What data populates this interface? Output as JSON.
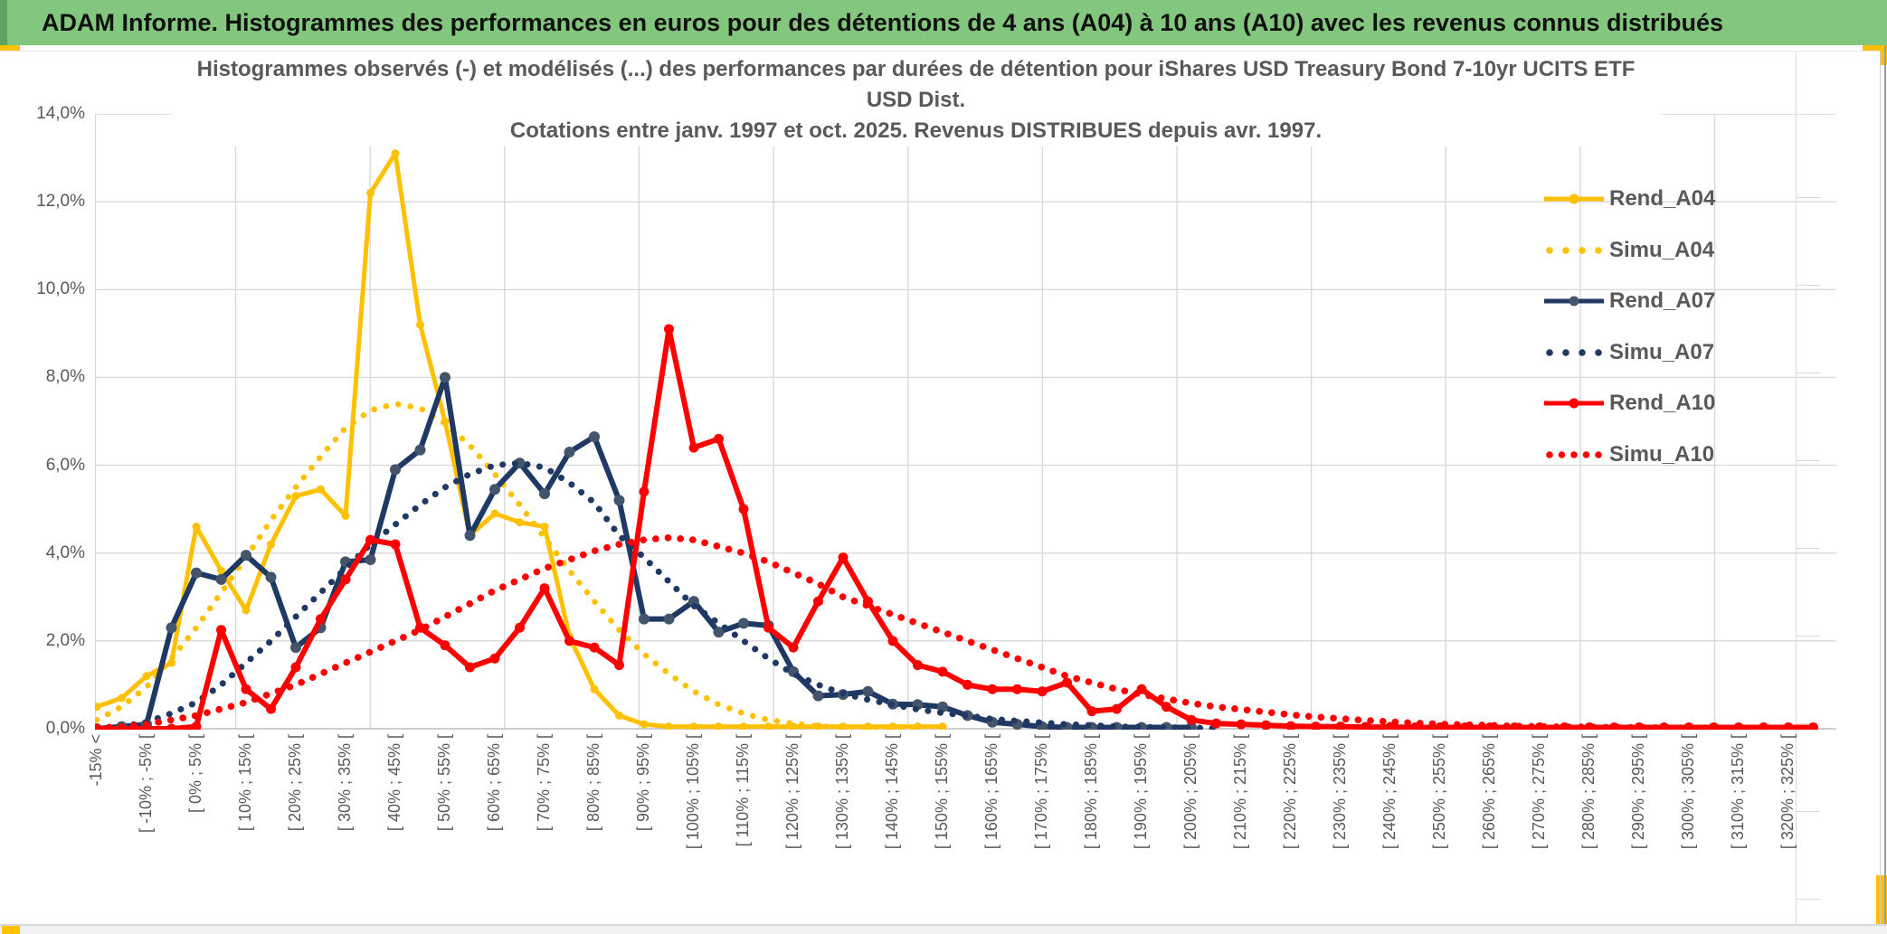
{
  "window": {
    "title": "ADAM Informe. Histogrammes des performances en euros pour des détentions de 4 ans (A04) à 10 ans (A10) avec les revenus connus distribués",
    "colors": {
      "header_green": "#83C67D",
      "header_green_edge": "#5FA25F",
      "accent_gold": "#FFC000",
      "text_gray": "#595959",
      "gridline": "#D9D9D9",
      "axis_line": "#BFBFBF"
    }
  },
  "chart": {
    "title_line1": "Histogrammes observés (-) et modélisés (...) des performances par durées de détention pour iShares USD Treasury Bond 7-10yr UCITS ETF USD Dist.",
    "title_line2": "Cotations entre janv. 1997 et oct. 2025. Revenus DISTRIBUES depuis avr. 1997."
  },
  "chart_data": {
    "type": "line",
    "title": "Histogrammes observés (-) et modélisés (...) des performances par durées de détention pour iShares USD Treasury Bond 7-10yr UCITS ETF USD Dist. Cotations entre janv. 1997 et oct. 2025. Revenus DISTRIBUES depuis avr. 1997.",
    "xlabel": "",
    "ylabel": "",
    "ylim": [
      0,
      14
    ],
    "grid": true,
    "legend_position": "right-inside",
    "y_ticks": [
      "14,0%",
      "12,0%",
      "10,0%",
      "8,0%",
      "6,0%",
      "4,0%",
      "2,0%",
      "0,0%"
    ],
    "n_bins": 70,
    "bin_width_pct": 5,
    "bins_per_label": 2,
    "x_tick_labels": [
      "-15% <",
      "[ -10% ; -5% [",
      "[ 0% ; 5% [",
      "[ 10% ; 15% [",
      "[ 20% ; 25% [",
      "[ 30% ; 35% [",
      "[ 40% ; 45% [",
      "[ 50% ; 55% [",
      "[ 60% ; 65% [",
      "[ 70% ; 75% [",
      "[ 80% ; 85% [",
      "[ 90% ; 95% [",
      "[ 100% ; 105% [",
      "[ 110% ; 115% [",
      "[ 120% ; 125% [",
      "[ 130% ; 135% [",
      "[ 140% ; 145% [",
      "[ 150% ; 155% [",
      "[ 160% ; 165% [",
      "[ 170% ; 175% [",
      "[ 180% ; 185% [",
      "[ 190% ; 195% [",
      "[ 200% ; 205% [",
      "[ 210% ; 215% [",
      "[ 220% ; 225% [",
      "[ 230% ; 235% [",
      "[ 240% ; 245% [",
      "[ 250% ; 255% [",
      "[ 260% ; 265% [",
      "[ 270% ; 275% [",
      "[ 280% ; 285% [",
      "[ 290% ; 295% [",
      "[ 300% ; 305% [",
      "[ 310% ; 315% [",
      "[ 320% ; 325% ["
    ],
    "series": [
      {
        "name": "Rend_A04",
        "style": "solid",
        "color": "#FFC000",
        "marker_color": "#FFC000",
        "values": [
          0.5,
          0.7,
          1.2,
          1.5,
          4.6,
          3.6,
          2.7,
          4.2,
          5.3,
          5.45,
          4.85,
          12.2,
          13.1,
          9.2,
          7.0,
          4.4,
          4.9,
          4.7,
          4.6,
          2.1,
          0.9,
          0.3,
          0.1,
          0.05,
          0.05,
          0.05,
          0.05,
          0.05,
          0.05,
          0.05,
          0.05,
          0.05,
          0.05,
          0.05,
          0.05,
          null,
          null,
          null,
          null,
          null,
          null,
          null,
          null,
          null,
          null,
          null,
          null,
          null,
          null,
          null,
          null,
          null,
          null,
          null,
          null,
          null,
          null,
          null,
          null,
          null,
          null,
          null,
          null,
          null,
          null,
          null,
          null,
          null,
          null,
          null
        ]
      },
      {
        "name": "Simu_A04",
        "style": "dotted",
        "color": "#FFC000",
        "values": [
          0.2,
          0.5,
          0.95,
          1.6,
          2.3,
          3.1,
          3.9,
          4.75,
          5.5,
          6.2,
          6.85,
          7.25,
          7.4,
          7.3,
          6.95,
          6.45,
          5.8,
          5.1,
          4.35,
          3.6,
          2.9,
          2.25,
          1.7,
          1.25,
          0.85,
          0.55,
          0.35,
          0.2,
          0.12,
          0.06,
          0.03,
          0.02,
          0.01,
          0.01,
          null,
          null,
          null,
          null,
          null,
          null,
          null,
          null,
          null,
          null,
          null,
          null,
          null,
          null,
          null,
          null,
          null,
          null,
          null,
          null,
          null,
          null,
          null,
          null,
          null,
          null,
          null,
          null,
          null,
          null,
          null,
          null,
          null,
          null,
          null,
          null
        ]
      },
      {
        "name": "Rend_A07",
        "style": "solid",
        "color": "#1F3864",
        "marker_color": "#44546A",
        "values": [
          0.0,
          0.05,
          0.1,
          2.3,
          3.55,
          3.4,
          3.95,
          3.45,
          1.85,
          2.3,
          3.8,
          3.85,
          5.9,
          6.35,
          8.0,
          4.4,
          5.45,
          6.05,
          5.35,
          6.3,
          6.65,
          5.2,
          2.5,
          2.5,
          2.9,
          2.2,
          2.4,
          2.35,
          1.3,
          0.75,
          0.78,
          0.85,
          0.56,
          0.55,
          0.5,
          0.3,
          0.15,
          0.1,
          0.05,
          0.03,
          0.03,
          0.03,
          0.03,
          0.03,
          0.03,
          null,
          null,
          null,
          null,
          null,
          null,
          null,
          null,
          null,
          null,
          null,
          null,
          null,
          null,
          null,
          null,
          null,
          null,
          null,
          null,
          null,
          null,
          null,
          null,
          null
        ]
      },
      {
        "name": "Simu_A07",
        "style": "dotted",
        "color": "#1F3864",
        "values": [
          0.02,
          0.05,
          0.15,
          0.35,
          0.6,
          1.0,
          1.5,
          2.0,
          2.55,
          3.1,
          3.65,
          4.2,
          4.65,
          5.1,
          5.5,
          5.8,
          6.0,
          6.05,
          5.95,
          5.6,
          5.15,
          4.4,
          3.9,
          3.35,
          2.8,
          2.4,
          2.0,
          1.6,
          1.25,
          1.0,
          0.8,
          0.66,
          0.55,
          0.44,
          0.36,
          0.3,
          0.22,
          0.18,
          0.14,
          0.1,
          0.08,
          0.05,
          0.04,
          0.03,
          0.02,
          0.01,
          null,
          null,
          null,
          null,
          null,
          null,
          null,
          null,
          null,
          null,
          null,
          null,
          null,
          null,
          null,
          null,
          null,
          null,
          null,
          null,
          null,
          null,
          null,
          null
        ]
      },
      {
        "name": "Rend_A10",
        "style": "solid",
        "color": "#FF0000",
        "marker_color": "#FF0000",
        "values": [
          0,
          0,
          0,
          0,
          0.05,
          2.25,
          0.9,
          0.45,
          1.4,
          2.5,
          3.4,
          4.3,
          4.2,
          2.3,
          1.9,
          1.4,
          1.6,
          2.3,
          3.2,
          2.0,
          1.85,
          1.45,
          5.4,
          9.1,
          6.4,
          6.6,
          5.0,
          2.3,
          1.85,
          2.9,
          3.9,
          2.9,
          2.0,
          1.45,
          1.3,
          1.0,
          0.9,
          0.9,
          0.85,
          1.05,
          0.4,
          0.45,
          0.9,
          0.5,
          0.2,
          0.12,
          0.1,
          0.08,
          0.06,
          0.05,
          0.05,
          0.04,
          0.04,
          0.03,
          0.03,
          0.03,
          0.03,
          0.03,
          0.03,
          0.03,
          0.03,
          0.03,
          0.03,
          0.03,
          0.03,
          0.03,
          0.03,
          0.03,
          0.03,
          0.03
        ]
      },
      {
        "name": "Simu_A10",
        "style": "dotted",
        "color": "#FF0000",
        "values": [
          0.02,
          0.05,
          0.1,
          0.2,
          0.3,
          0.45,
          0.6,
          0.8,
          1.0,
          1.25,
          1.5,
          1.75,
          2.0,
          2.25,
          2.55,
          2.85,
          3.15,
          3.4,
          3.65,
          3.85,
          4.05,
          4.2,
          4.3,
          4.35,
          4.3,
          4.15,
          4.0,
          3.8,
          3.55,
          3.3,
          3.0,
          2.8,
          2.6,
          2.4,
          2.2,
          2.0,
          1.8,
          1.6,
          1.4,
          1.2,
          1.05,
          0.9,
          0.78,
          0.68,
          0.58,
          0.5,
          0.44,
          0.38,
          0.32,
          0.27,
          0.23,
          0.19,
          0.16,
          0.13,
          0.11,
          0.09,
          0.08,
          0.06,
          0.05,
          0.04,
          0.04,
          0.03,
          0.03,
          0.02,
          0.02,
          0.02,
          0.01,
          0.01,
          0.01,
          0.01
        ]
      }
    ]
  }
}
